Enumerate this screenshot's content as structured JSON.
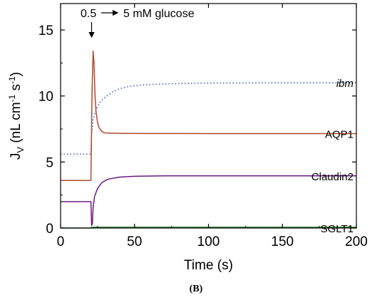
{
  "caption": "(B)",
  "chart_data": {
    "type": "line",
    "xlabel": "Time (s)",
    "ylabel_main": "J",
    "ylabel_sub": "V",
    "ylabel_units_a": " (nL cm",
    "ylabel_units_b": " s",
    "ylabel_units_close": ")",
    "ylabel_exp": "-1",
    "xlim": [
      0,
      200
    ],
    "ylim": [
      0,
      17
    ],
    "xticks": [
      0,
      50,
      100,
      150,
      200
    ],
    "yticks": [
      0,
      5,
      10,
      15
    ],
    "grid": false,
    "annotation": {
      "from_text": "0.5",
      "to_text": "5 mM glucose",
      "arrow_x": 20
    },
    "series": [
      {
        "name": "ibm",
        "style": "dotted",
        "color": "#3b5fc4",
        "label_color": "#1f2f9e",
        "label_italic": true,
        "label_y": 11,
        "points": [
          [
            0,
            5.6
          ],
          [
            20,
            5.6
          ],
          [
            20.5,
            5.6
          ],
          [
            21,
            7.2
          ],
          [
            22,
            8.2
          ],
          [
            24,
            9.0
          ],
          [
            26,
            9.4
          ],
          [
            28,
            9.7
          ],
          [
            30,
            9.9
          ],
          [
            35,
            10.3
          ],
          [
            40,
            10.55
          ],
          [
            45,
            10.7
          ],
          [
            50,
            10.78
          ],
          [
            60,
            10.87
          ],
          [
            80,
            10.95
          ],
          [
            100,
            10.98
          ],
          [
            150,
            11.0
          ],
          [
            200,
            11.0
          ]
        ]
      },
      {
        "name": "AQP1",
        "style": "solid",
        "color": "#b04a2e",
        "label_color": "#c0392b",
        "label_italic": false,
        "label_y": 7.15,
        "points": [
          [
            0,
            3.6
          ],
          [
            20,
            3.6
          ],
          [
            20.5,
            3.6
          ],
          [
            21.3,
            10.5
          ],
          [
            22,
            13.4
          ],
          [
            22.6,
            12.5
          ],
          [
            23.3,
            10.0
          ],
          [
            24,
            8.8
          ],
          [
            25,
            8.0
          ],
          [
            26,
            7.6
          ],
          [
            28,
            7.3
          ],
          [
            30,
            7.2
          ],
          [
            40,
            7.17
          ],
          [
            60,
            7.16
          ],
          [
            100,
            7.15
          ],
          [
            150,
            7.15
          ],
          [
            200,
            7.15
          ]
        ]
      },
      {
        "name": "Claudin2",
        "style": "solid",
        "color": "#6a1b7f",
        "label_color": "#5b1a78",
        "label_italic": false,
        "label_y": 3.95,
        "points": [
          [
            0,
            2.0
          ],
          [
            20,
            2.0
          ],
          [
            20.5,
            2.0
          ],
          [
            21,
            0.2
          ],
          [
            21.5,
            0.3
          ],
          [
            22,
            1.6
          ],
          [
            23,
            2.4
          ],
          [
            25,
            3.0
          ],
          [
            28,
            3.45
          ],
          [
            32,
            3.7
          ],
          [
            40,
            3.86
          ],
          [
            50,
            3.92
          ],
          [
            70,
            3.95
          ],
          [
            100,
            3.95
          ],
          [
            200,
            3.95
          ]
        ]
      },
      {
        "name": "SGLT1",
        "style": "solid",
        "color": "#2e7d32",
        "label_color": "#2e8b2e",
        "label_italic": false,
        "label_y": 0,
        "points": [
          [
            0,
            0.0
          ],
          [
            20,
            0.0
          ],
          [
            21,
            0.06
          ],
          [
            30,
            0.06
          ],
          [
            200,
            0.06
          ]
        ]
      }
    ]
  }
}
